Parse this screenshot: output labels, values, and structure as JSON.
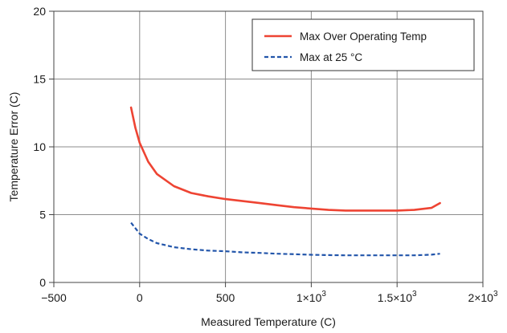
{
  "chart_data": {
    "type": "line",
    "title": "",
    "xlabel": "Measured Temperature (C)",
    "ylabel": "Temperature Error (C)",
    "xlim": [
      -500,
      2000
    ],
    "ylim": [
      0,
      20
    ],
    "x_ticks": [
      -500,
      0,
      500,
      1000,
      1500,
      2000
    ],
    "x_tick_labels": [
      "−500",
      "0",
      "500",
      "1×10",
      "1.5×10",
      "2×10"
    ],
    "x_tick_exponents": [
      "",
      "",
      "",
      "3",
      "3",
      "3"
    ],
    "y_ticks": [
      0,
      5,
      10,
      15,
      20
    ],
    "y_tick_labels": [
      "0",
      "5",
      "10",
      "15",
      "20"
    ],
    "grid": true,
    "legend_position": "top-right",
    "series": [
      {
        "name": "Max Over Operating Temp",
        "color": "#ee4433",
        "style": "solid",
        "x": [
          -50,
          -25,
          0,
          50,
          100,
          200,
          300,
          400,
          500,
          600,
          700,
          800,
          900,
          1000,
          1100,
          1200,
          1300,
          1400,
          1500,
          1600,
          1700,
          1750
        ],
        "y": [
          12.9,
          11.4,
          10.3,
          8.9,
          8.0,
          7.1,
          6.6,
          6.35,
          6.15,
          6.0,
          5.85,
          5.7,
          5.55,
          5.45,
          5.35,
          5.3,
          5.3,
          5.3,
          5.3,
          5.35,
          5.5,
          5.85
        ]
      },
      {
        "name": "Max at 25 °C",
        "color": "#2255aa",
        "style": "dashed",
        "x": [
          -50,
          -25,
          0,
          50,
          100,
          200,
          300,
          400,
          500,
          600,
          700,
          800,
          900,
          1000,
          1100,
          1200,
          1300,
          1400,
          1500,
          1600,
          1700,
          1750
        ],
        "y": [
          4.4,
          4.0,
          3.6,
          3.2,
          2.9,
          2.6,
          2.45,
          2.35,
          2.3,
          2.22,
          2.18,
          2.12,
          2.08,
          2.04,
          2.02,
          2.0,
          2.0,
          2.0,
          2.0,
          2.0,
          2.05,
          2.12
        ]
      }
    ]
  }
}
